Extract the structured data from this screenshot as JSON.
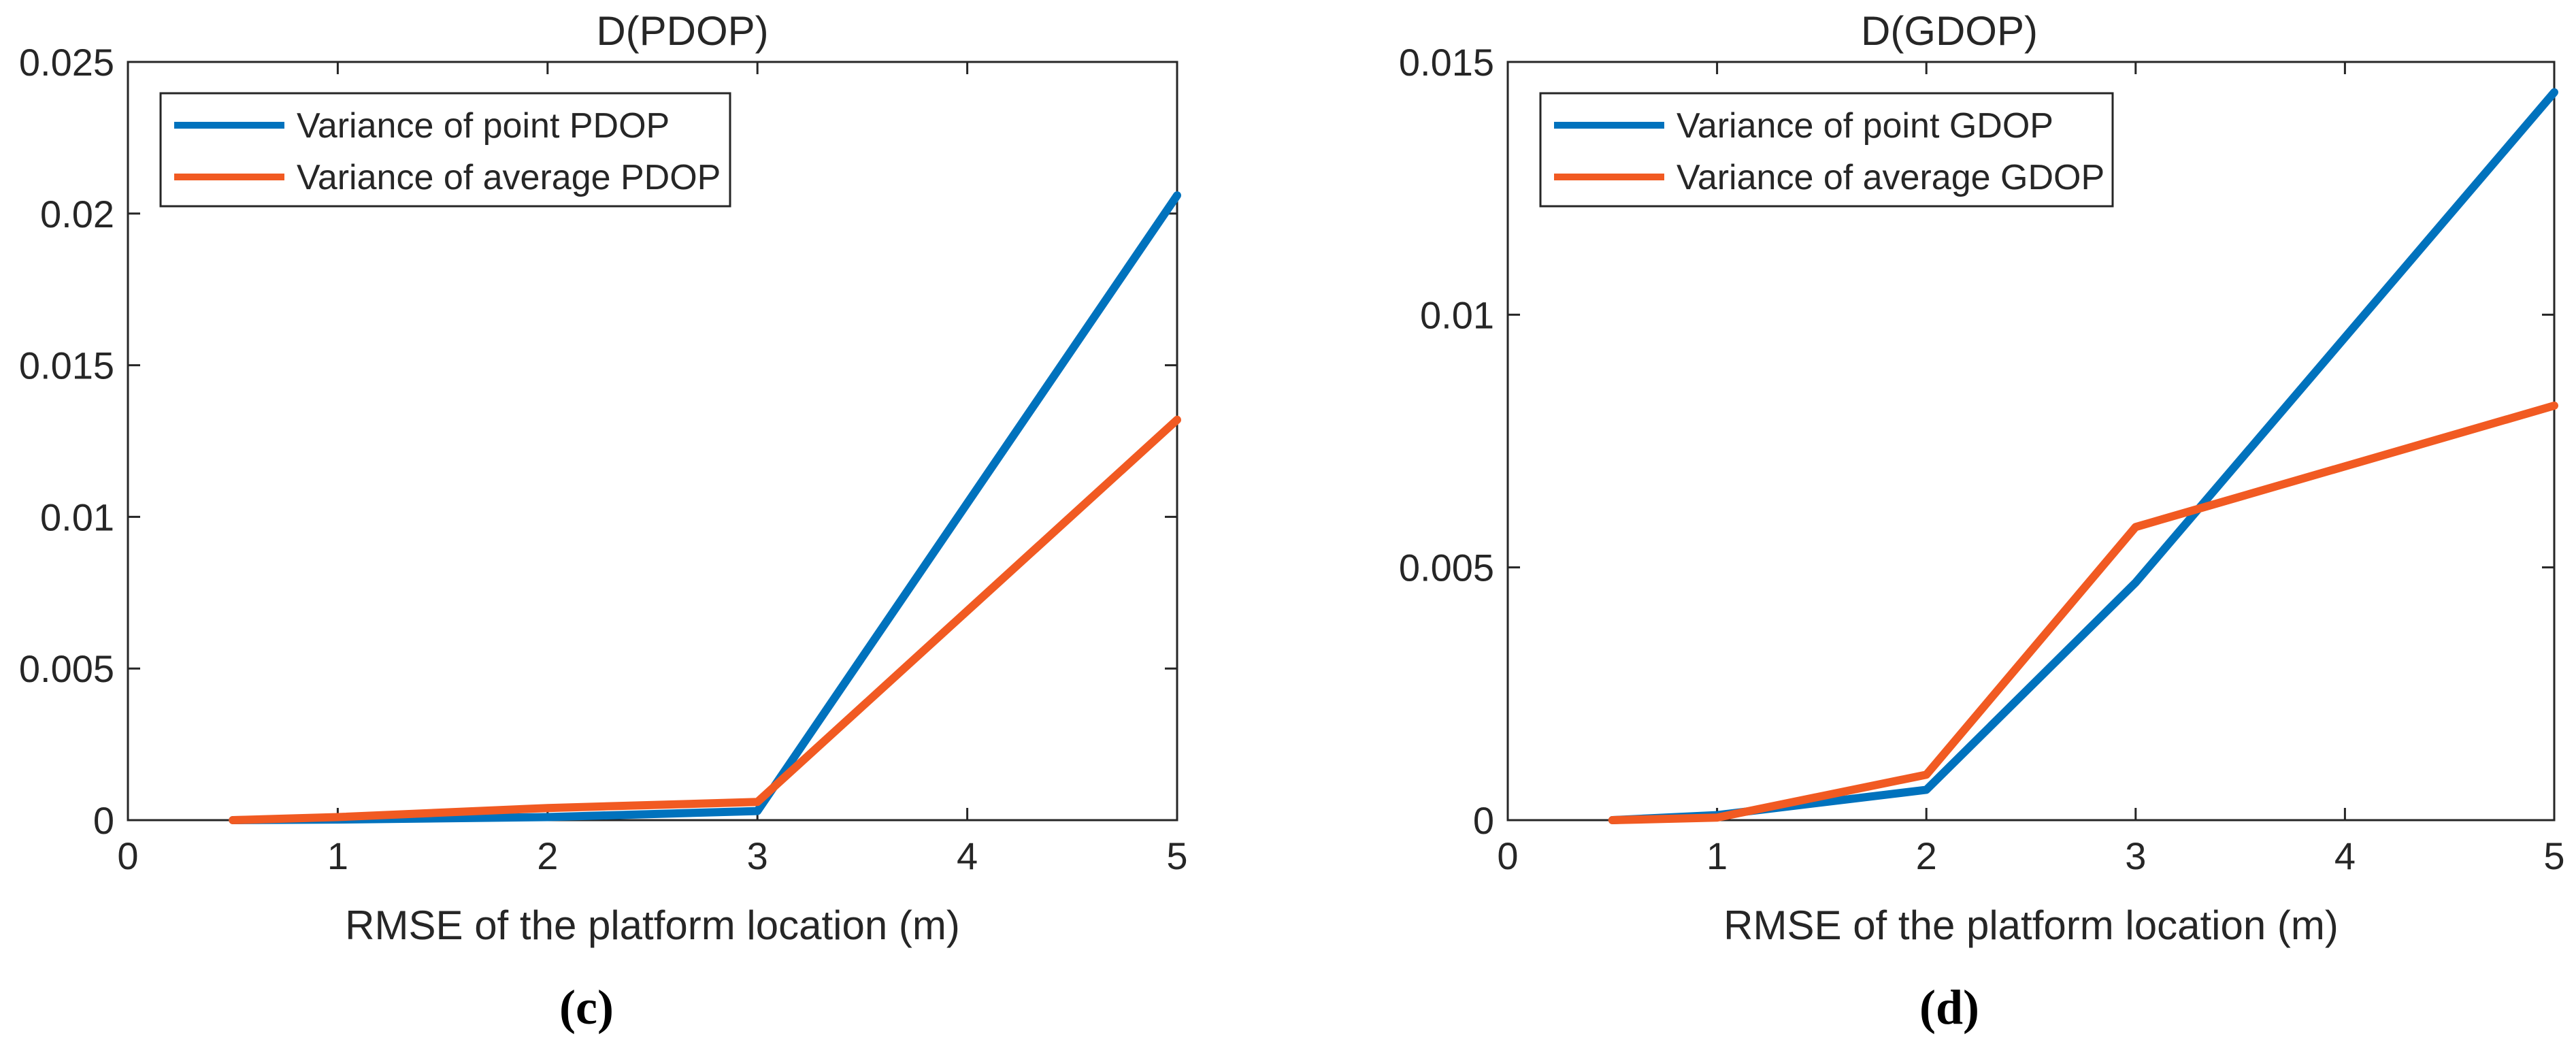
{
  "colors": {
    "series_1": "#0072BD",
    "series_2": "#F15A22",
    "axis": "#262626"
  },
  "chart_data": [
    {
      "type": "line",
      "panel_label": "(c)",
      "title": "D(PDOP)",
      "xlabel": "RMSE of the platform location (m)",
      "ylabel": "",
      "xlim": [
        0,
        5
      ],
      "ylim": [
        0,
        0.025
      ],
      "xticks": [
        0,
        1,
        2,
        3,
        4,
        5
      ],
      "xtick_labels": [
        "0",
        "1",
        "2",
        "3",
        "4",
        "5"
      ],
      "yticks": [
        0,
        0.005,
        0.01,
        0.015,
        0.02,
        0.025
      ],
      "ytick_labels": [
        "0",
        "0.005",
        "0.01",
        "0.015",
        "0.02",
        "0.025"
      ],
      "grid": false,
      "legend_position": "top-left",
      "x": [
        0.5,
        1,
        2,
        3,
        5
      ],
      "series": [
        {
          "name": "Variance of point PDOP",
          "color": "#0072BD",
          "values": [
            0.0,
            2e-05,
            0.0001,
            0.0003,
            0.0206
          ]
        },
        {
          "name": "Variance of average PDOP",
          "color": "#F15A22",
          "values": [
            0.0,
            0.0001,
            0.0004,
            0.0006,
            0.0132
          ]
        }
      ]
    },
    {
      "type": "line",
      "panel_label": "(d)",
      "title": "D(GDOP)",
      "xlabel": "RMSE of the platform location (m)",
      "ylabel": "",
      "xlim": [
        0,
        5
      ],
      "ylim": [
        0,
        0.015
      ],
      "xticks": [
        0,
        1,
        2,
        3,
        4,
        5
      ],
      "xtick_labels": [
        "0",
        "1",
        "2",
        "3",
        "4",
        "5"
      ],
      "yticks": [
        0,
        0.005,
        0.01,
        0.015
      ],
      "ytick_labels": [
        "0",
        "0.005",
        "0.01",
        "0.015"
      ],
      "grid": false,
      "legend_position": "top-left",
      "x": [
        0.5,
        1,
        2,
        3,
        5
      ],
      "series": [
        {
          "name": "Variance of point GDOP",
          "color": "#0072BD",
          "values": [
            0.0,
            0.0001,
            0.0006,
            0.0047,
            0.0144
          ]
        },
        {
          "name": "Variance of average GDOP",
          "color": "#F15A22",
          "values": [
            0.0,
            5e-05,
            0.0009,
            0.0058,
            0.0082
          ]
        }
      ]
    }
  ]
}
